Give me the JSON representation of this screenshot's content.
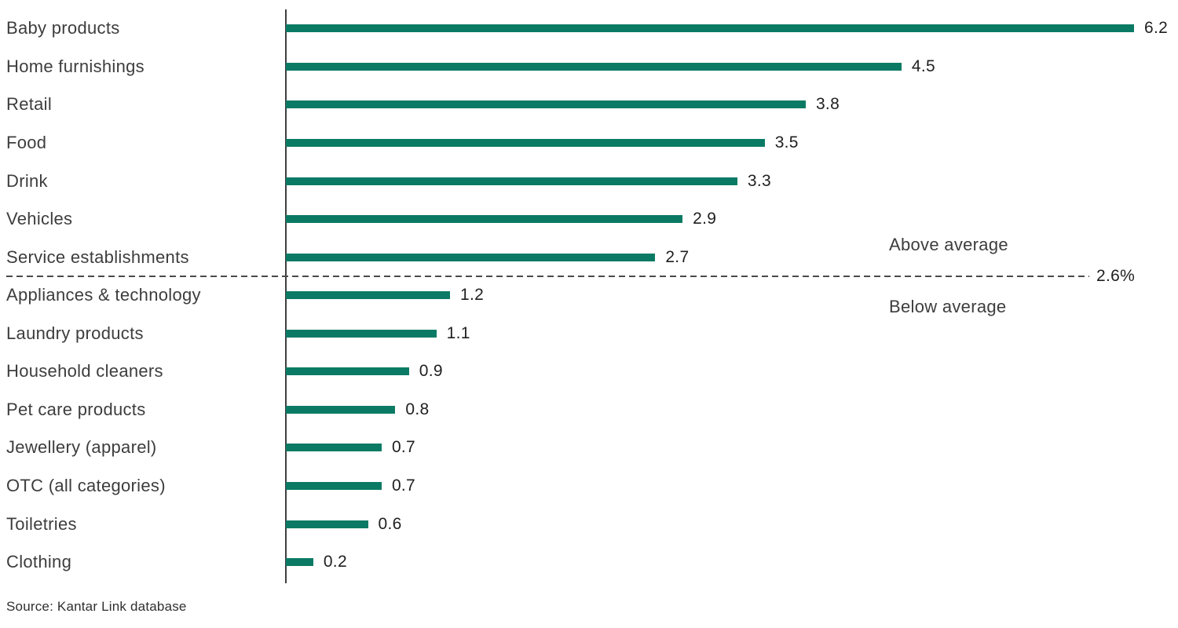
{
  "chart_data": {
    "type": "bar",
    "orientation": "horizontal",
    "categories": [
      "Baby products",
      "Home furnishings",
      "Retail",
      "Food",
      "Drink",
      "Vehicles",
      "Service establishments",
      "Appliances & technology",
      "Laundry products",
      "Household cleaners",
      "Pet care products",
      "Jewellery (apparel)",
      "OTC (all categories)",
      "Toiletries",
      "Clothing"
    ],
    "values": [
      6.2,
      4.5,
      3.8,
      3.5,
      3.3,
      2.9,
      2.7,
      1.2,
      1.1,
      0.9,
      0.8,
      0.7,
      0.7,
      0.6,
      0.2
    ],
    "reference_line": {
      "value": 2.6,
      "label": "2.6%"
    },
    "annotations": {
      "above": "Above average",
      "below": "Below average"
    },
    "bar_color": "#0b7a64",
    "xlim": [
      0,
      6.5
    ],
    "grid": false,
    "legend": false
  },
  "source": "Source: Kantar Link database"
}
